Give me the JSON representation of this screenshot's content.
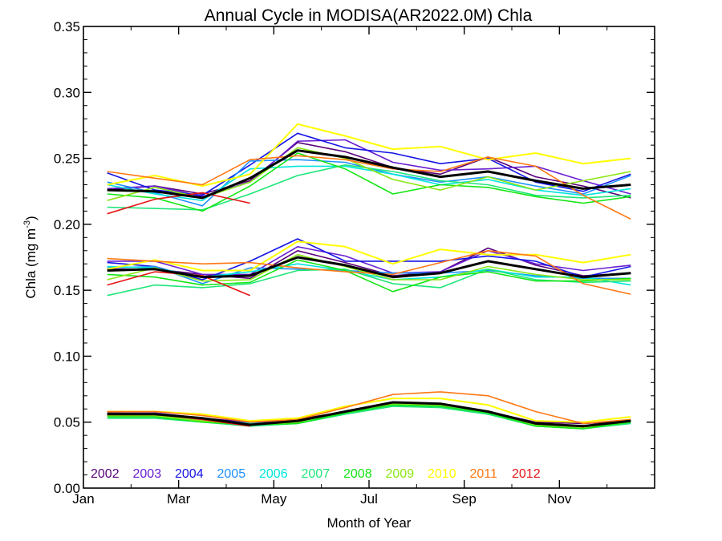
{
  "chart_data": {
    "type": "line",
    "title": "Annual Cycle in MODISA(AR2022.0M) Chla",
    "xlabel": "Month of Year",
    "ylabel_main": "Chla (mg m",
    "ylabel_sup": "-3",
    "ylabel_close": ")",
    "xlim": [
      0,
      12
    ],
    "ylim": [
      0,
      0.35
    ],
    "x_tick_labels": [
      {
        "x": 0,
        "label": "Jan"
      },
      {
        "x": 2,
        "label": "Mar"
      },
      {
        "x": 4,
        "label": "May"
      },
      {
        "x": 6,
        "label": "Jul"
      },
      {
        "x": 8,
        "label": "Sep"
      },
      {
        "x": 10,
        "label": "Nov"
      }
    ],
    "y_tick_labels": [
      "0.00",
      "0.05",
      "0.10",
      "0.15",
      "0.20",
      "0.25",
      "0.30",
      "0.35"
    ],
    "x_months": [
      0.5,
      1.5,
      2.5,
      3.5,
      4.5,
      5.5,
      6.5,
      7.5,
      8.5,
      9.5,
      10.5,
      11.5
    ],
    "grid": false,
    "legend_position": "bottom-left",
    "groups": [
      "upper",
      "middle",
      "lower"
    ],
    "series": [
      {
        "name": "2002",
        "color": "#5a007a",
        "width": 1.6,
        "upper": [
          0.226,
          0.229,
          0.223,
          0.233,
          0.262,
          0.255,
          0.243,
          0.238,
          0.251,
          0.236,
          0.229,
          0.22
        ],
        "middle": [
          0.166,
          0.166,
          0.162,
          0.159,
          0.18,
          0.171,
          0.161,
          0.164,
          0.182,
          0.169,
          0.161,
          0.163
        ],
        "lower": [
          0.057,
          0.057,
          0.053,
          0.05,
          0.052,
          0.058,
          0.065,
          0.064,
          0.058,
          0.05,
          0.049,
          0.051
        ]
      },
      {
        "name": "2003",
        "color": "#6a1ed2",
        "width": 1.6,
        "upper": [
          0.227,
          0.229,
          0.221,
          0.232,
          0.263,
          0.264,
          0.247,
          0.241,
          0.242,
          0.244,
          0.233,
          0.223
        ],
        "middle": [
          0.172,
          0.172,
          0.162,
          0.162,
          0.183,
          0.176,
          0.163,
          0.164,
          0.18,
          0.17,
          0.165,
          0.169
        ],
        "lower": [
          0.058,
          0.057,
          0.053,
          0.049,
          0.051,
          0.058,
          0.064,
          0.063,
          0.057,
          0.049,
          0.047,
          0.051
        ]
      },
      {
        "name": "2004",
        "color": "#1414e6",
        "width": 1.6,
        "upper": [
          0.239,
          0.226,
          0.222,
          0.245,
          0.269,
          0.258,
          0.254,
          0.246,
          0.25,
          0.232,
          0.225,
          0.238
        ],
        "middle": [
          0.171,
          0.168,
          0.158,
          0.172,
          0.189,
          0.172,
          0.172,
          0.172,
          0.176,
          0.172,
          0.16,
          0.168
        ],
        "lower": [
          0.056,
          0.056,
          0.053,
          0.049,
          0.051,
          0.058,
          0.064,
          0.063,
          0.058,
          0.049,
          0.046,
          0.05
        ]
      },
      {
        "name": "2005",
        "color": "#1e90ff",
        "width": 1.6,
        "upper": [
          0.232,
          0.224,
          0.214,
          0.248,
          0.249,
          0.247,
          0.238,
          0.232,
          0.236,
          0.229,
          0.223,
          0.237
        ],
        "middle": [
          0.167,
          0.168,
          0.155,
          0.167,
          0.166,
          0.165,
          0.163,
          0.163,
          0.165,
          0.161,
          0.159,
          0.159
        ],
        "lower": [
          0.055,
          0.055,
          0.052,
          0.049,
          0.05,
          0.057,
          0.063,
          0.062,
          0.057,
          0.048,
          0.046,
          0.05
        ]
      },
      {
        "name": "2006",
        "color": "#00e6dc",
        "width": 1.6,
        "upper": [
          0.23,
          0.223,
          0.218,
          0.242,
          0.244,
          0.244,
          0.238,
          0.23,
          0.234,
          0.226,
          0.222,
          0.227
        ],
        "middle": [
          0.168,
          0.167,
          0.16,
          0.164,
          0.17,
          0.165,
          0.158,
          0.16,
          0.166,
          0.16,
          0.16,
          0.154
        ],
        "lower": [
          0.055,
          0.055,
          0.052,
          0.049,
          0.05,
          0.057,
          0.063,
          0.062,
          0.057,
          0.048,
          0.046,
          0.05
        ]
      },
      {
        "name": "2007",
        "color": "#1ee678",
        "width": 1.6,
        "upper": [
          0.213,
          0.212,
          0.211,
          0.223,
          0.237,
          0.245,
          0.24,
          0.233,
          0.23,
          0.222,
          0.22,
          0.222
        ],
        "middle": [
          0.146,
          0.154,
          0.152,
          0.155,
          0.165,
          0.166,
          0.155,
          0.152,
          0.166,
          0.158,
          0.156,
          0.157
        ],
        "lower": [
          0.053,
          0.053,
          0.05,
          0.047,
          0.049,
          0.056,
          0.062,
          0.061,
          0.056,
          0.047,
          0.045,
          0.049
        ]
      },
      {
        "name": "2008",
        "color": "#14e614",
        "width": 1.6,
        "upper": [
          0.223,
          0.22,
          0.21,
          0.229,
          0.254,
          0.242,
          0.223,
          0.23,
          0.228,
          0.221,
          0.216,
          0.221
        ],
        "middle": [
          0.162,
          0.16,
          0.154,
          0.156,
          0.173,
          0.165,
          0.149,
          0.16,
          0.164,
          0.157,
          0.157,
          0.159
        ],
        "lower": [
          0.054,
          0.054,
          0.05,
          0.048,
          0.049,
          0.057,
          0.063,
          0.062,
          0.057,
          0.047,
          0.045,
          0.05
        ]
      },
      {
        "name": "2009",
        "color": "#8ce614",
        "width": 1.6,
        "upper": [
          0.218,
          0.228,
          0.22,
          0.232,
          0.258,
          0.25,
          0.234,
          0.226,
          0.236,
          0.226,
          0.233,
          0.24
        ],
        "middle": [
          0.158,
          0.167,
          0.157,
          0.158,
          0.177,
          0.168,
          0.158,
          0.158,
          0.168,
          0.162,
          0.158,
          0.158
        ],
        "lower": [
          0.055,
          0.055,
          0.051,
          0.048,
          0.05,
          0.058,
          0.064,
          0.063,
          0.058,
          0.048,
          0.046,
          0.051
        ]
      },
      {
        "name": "2010",
        "color": "#ffff00",
        "width": 2,
        "upper": [
          0.23,
          0.237,
          0.229,
          0.238,
          0.276,
          0.267,
          0.257,
          0.259,
          0.249,
          0.254,
          0.246,
          0.25
        ],
        "middle": [
          0.166,
          0.173,
          0.165,
          0.165,
          0.187,
          0.183,
          0.17,
          0.181,
          0.177,
          0.177,
          0.171,
          0.177
        ],
        "lower": [
          0.058,
          0.058,
          0.056,
          0.051,
          0.053,
          0.062,
          0.068,
          0.068,
          0.063,
          0.051,
          0.05,
          0.054
        ]
      },
      {
        "name": "2011",
        "color": "#ff7814",
        "width": 1.6,
        "upper": [
          0.24,
          0.235,
          0.23,
          0.249,
          0.252,
          0.249,
          0.242,
          0.24,
          0.251,
          0.244,
          0.222,
          0.204
        ],
        "middle": [
          0.174,
          0.172,
          0.17,
          0.171,
          0.167,
          0.164,
          0.162,
          0.171,
          0.18,
          0.176,
          0.155,
          0.147
        ],
        "lower": [
          0.058,
          0.058,
          0.055,
          0.05,
          0.052,
          0.061,
          0.071,
          0.073,
          0.07,
          0.058,
          0.049,
          0.052
        ]
      },
      {
        "name": "2012",
        "color": "#e61414",
        "width": 1.6,
        "upper": [
          0.208,
          0.219,
          0.224,
          0.216,
          null,
          null,
          null,
          null,
          null,
          null,
          null,
          null
        ],
        "middle": [
          0.154,
          0.164,
          0.161,
          0.146,
          null,
          null,
          null,
          null,
          null,
          null,
          null,
          null
        ],
        "lower": [
          0.056,
          0.056,
          0.052,
          0.047,
          null,
          null,
          null,
          null,
          null,
          null,
          null,
          null
        ]
      },
      {
        "name": "",
        "color": "#000000",
        "width": 3,
        "upper": [
          0.226,
          0.225,
          0.22,
          0.235,
          0.256,
          0.251,
          0.243,
          0.236,
          0.24,
          0.233,
          0.227,
          0.23
        ],
        "middle": [
          0.165,
          0.166,
          0.16,
          0.161,
          0.175,
          0.169,
          0.16,
          0.163,
          0.172,
          0.166,
          0.16,
          0.163
        ],
        "lower": [
          0.056,
          0.056,
          0.053,
          0.048,
          0.051,
          0.058,
          0.065,
          0.064,
          0.058,
          0.049,
          0.047,
          0.051
        ]
      }
    ]
  }
}
